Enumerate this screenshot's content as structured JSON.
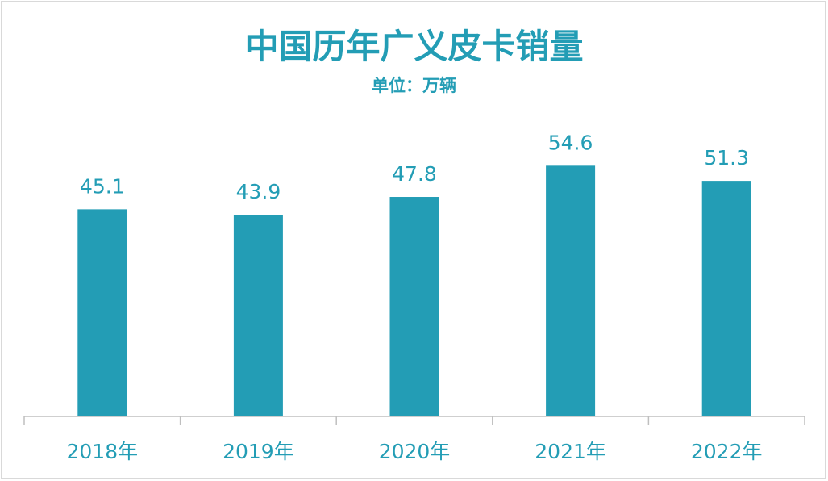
{
  "chart": {
    "title": "中国历年广义皮卡销量",
    "subtitle": "单位：万辆"
  },
  "chart_data": {
    "type": "bar",
    "title": "中国历年广义皮卡销量",
    "subtitle": "单位：万辆",
    "categories": [
      "2018年",
      "2019年",
      "2020年",
      "2021年",
      "2022年"
    ],
    "values": [
      45.1,
      43.9,
      47.8,
      54.6,
      51.3
    ],
    "data_labels": [
      "45.1",
      "43.9",
      "47.8",
      "54.6",
      "51.3"
    ],
    "xlabel": "",
    "ylabel": "",
    "ylim": [
      0,
      66
    ],
    "grid": false,
    "legend": "none",
    "bar_color": "#239db5",
    "text_color": "#239db5",
    "axis_color": "#bfbfbf"
  }
}
